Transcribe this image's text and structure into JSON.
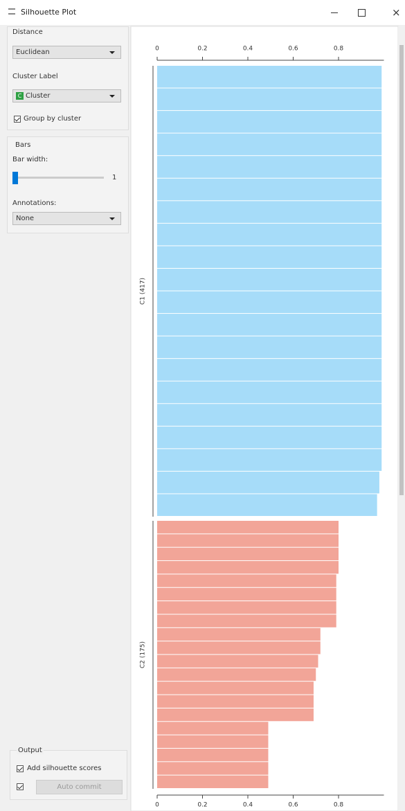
{
  "window": {
    "title": "Silhouette Plot"
  },
  "sidebar": {
    "distance": {
      "heading": "Distance",
      "value": "Euclidean"
    },
    "cluster_label": {
      "heading": "Cluster Label",
      "value": "Cluster",
      "badge": "C"
    },
    "group_by_cluster": "Group by cluster",
    "bars": {
      "heading": "Bars",
      "bar_width_label": "Bar width:",
      "bar_width_value": 1,
      "annotations_label": "Annotations:",
      "annotations_value": "None"
    },
    "output": {
      "heading": "Output",
      "add_scores": "Add silhouette scores",
      "commit": "Auto commit"
    }
  },
  "plot": {
    "xlim": [
      0,
      1
    ],
    "xticks": [
      0,
      0.2,
      0.4,
      0.6,
      0.8
    ],
    "clusters": [
      {
        "label": "C1 (417)",
        "color": "#a6dcf9",
        "values": [
          0.99,
          0.99,
          0.99,
          0.99,
          0.99,
          0.99,
          0.99,
          0.99,
          0.99,
          0.99,
          0.99,
          0.99,
          0.99,
          0.99,
          0.99,
          0.99,
          0.99,
          0.99,
          0.98,
          0.97
        ]
      },
      {
        "label": "C2 (175)",
        "color": "#f2a598",
        "values": [
          0.8,
          0.8,
          0.8,
          0.8,
          0.79,
          0.79,
          0.79,
          0.79,
          0.72,
          0.72,
          0.71,
          0.7,
          0.69,
          0.69,
          0.69,
          0.49,
          0.49,
          0.49,
          0.49,
          0.49
        ]
      }
    ]
  }
}
